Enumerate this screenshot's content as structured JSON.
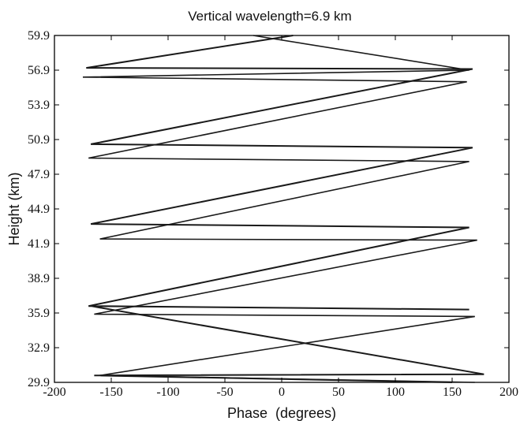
{
  "chart_data": {
    "type": "line",
    "title": "Vertical wavelength=6.9 km",
    "xlabel": "Phase  (degrees)",
    "ylabel": "Height (km)",
    "xlim": [
      -200,
      200
    ],
    "ylim": [
      29.9,
      59.9
    ],
    "xticks": [
      -200,
      -150,
      -100,
      -50,
      0,
      50,
      100,
      150,
      200
    ],
    "xtick_labels": [
      "-200",
      "-150",
      "-100",
      "-50",
      "0",
      "50",
      "100",
      "150",
      "200"
    ],
    "yticks": [
      29.9,
      32.9,
      35.9,
      38.9,
      41.9,
      44.9,
      47.9,
      50.9,
      53.9,
      56.9,
      59.9
    ],
    "ytick_labels": [
      "29.9",
      "32.9",
      "35.9",
      "38.9",
      "41.9",
      "44.9",
      "47.9",
      "50.9",
      "53.9",
      "56.9",
      "59.9"
    ],
    "grid": false,
    "line_color": "#1a1a1a",
    "series": [
      {
        "x": [
          150,
          -165,
          178,
          -168,
          165,
          -170,
          165,
          -168,
          168,
          -168,
          168,
          -172,
          10
        ],
        "y": [
          29.9,
          30.5,
          30.6,
          36.5,
          36.2,
          36.5,
          43.3,
          43.6,
          50.2,
          50.5,
          57.0,
          57.1,
          59.9
        ]
      },
      {
        "x": [
          170,
          -160,
          170,
          -165,
          172,
          -160,
          165,
          -170,
          163,
          -175,
          165,
          -25
        ],
        "y": [
          29.9,
          30.5,
          35.6,
          35.8,
          42.2,
          42.3,
          49.0,
          49.3,
          55.9,
          56.3,
          56.9,
          59.9
        ]
      }
    ]
  }
}
